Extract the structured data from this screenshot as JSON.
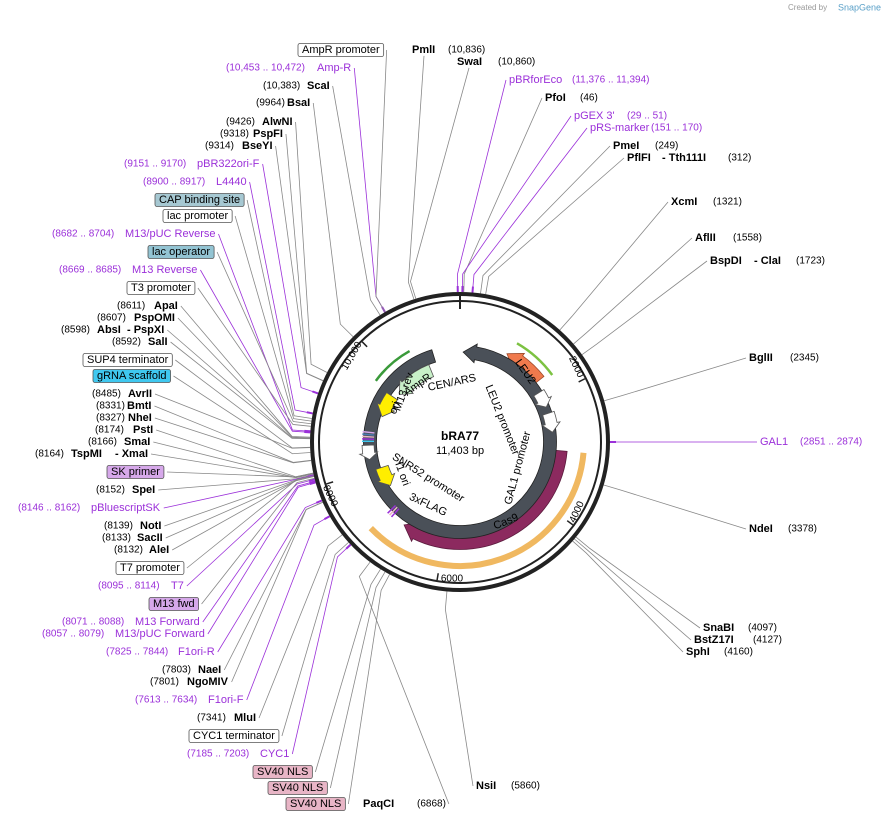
{
  "header": {
    "credit": "Created by",
    "brand": "SnapGene"
  },
  "plasmid": {
    "name": "bRA77",
    "size": "11,403 bp",
    "ring_ticks": [
      "2000",
      "4000",
      "6000",
      "8000",
      "10,000"
    ],
    "features": [
      {
        "name": "AmpR"
      },
      {
        "name": "ori"
      },
      {
        "name": "M13 rev"
      },
      {
        "name": "CEN/ARS"
      },
      {
        "name": "LEU2"
      },
      {
        "name": "LEU2 promoter"
      },
      {
        "name": "GAL1 promoter"
      },
      {
        "name": "Cas9"
      },
      {
        "name": "SNR52 promoter"
      },
      {
        "name": "f1 ori"
      },
      {
        "name": "3xFLAG"
      }
    ]
  },
  "enzymes": [
    {
      "name": "PmlI",
      "position": "(10,836)"
    },
    {
      "name": "SwaI",
      "position": "(10,860)"
    },
    {
      "name": "ScaI",
      "position": "(10,383)"
    },
    {
      "name": "PfoI",
      "position": "(46)"
    },
    {
      "name": "BsaI",
      "position": "(9964)"
    },
    {
      "name": "AlwNI",
      "position": "(9426)"
    },
    {
      "name": "PspFI",
      "position": "(9318)"
    },
    {
      "name": "BseYI",
      "position": "(9314)"
    },
    {
      "name": "PmeI",
      "position": "(249)"
    },
    {
      "name": "PflFI",
      "position": "(312)",
      "also": "- Tth111I"
    },
    {
      "name": "XcmI",
      "position": "(1321)"
    },
    {
      "name": "AflII",
      "position": "(1558)"
    },
    {
      "name": "BspDI",
      "position": "(1723)",
      "also": "- ClaI"
    },
    {
      "name": "ApaI",
      "position": "(8611)"
    },
    {
      "name": "PspOMI",
      "position": "(8607)"
    },
    {
      "name": "AbsI",
      "position": "(8598)",
      "also": "- PspXI"
    },
    {
      "name": "SalI",
      "position": "(8592)"
    },
    {
      "name": "BglII",
      "position": "(2345)"
    },
    {
      "name": "AvrII",
      "position": "(8485)"
    },
    {
      "name": "BmtI",
      "position": "(8331)"
    },
    {
      "name": "NheI",
      "position": "(8327)"
    },
    {
      "name": "PstI",
      "position": "(8174)"
    },
    {
      "name": "SmaI",
      "position": "(8166)"
    },
    {
      "name": "TspMI",
      "position": "(8164)",
      "also": "- XmaI"
    },
    {
      "name": "SpeI",
      "position": "(8152)"
    },
    {
      "name": "NotI",
      "position": "(8139)"
    },
    {
      "name": "NdeI",
      "position": "(3378)"
    },
    {
      "name": "SacII",
      "position": "(8133)"
    },
    {
      "name": "AleI",
      "position": "(8132)"
    },
    {
      "name": "SnaBI",
      "position": "(4097)"
    },
    {
      "name": "BstZ17I",
      "position": "(4127)"
    },
    {
      "name": "SphI",
      "position": "(4160)"
    },
    {
      "name": "NaeI",
      "position": "(7803)"
    },
    {
      "name": "NgoMIV",
      "position": "(7801)"
    },
    {
      "name": "MluI",
      "position": "(7341)"
    },
    {
      "name": "NsiI",
      "position": "(5860)"
    },
    {
      "name": "PaqCI",
      "position": "(6868)"
    }
  ],
  "primers": [
    {
      "name": "Amp-R",
      "range": "(10,453 .. 10,472)"
    },
    {
      "name": "pBRforEco",
      "range": "(11,376 .. 11,394)"
    },
    {
      "name": "pGEX 3'",
      "range": "(29 .. 51)"
    },
    {
      "name": "pRS-marker",
      "range": "(151 .. 170)"
    },
    {
      "name": "pBR322ori-F",
      "range": "(9151 .. 9170)"
    },
    {
      "name": "L4440",
      "range": "(8900 .. 8917)"
    },
    {
      "name": "M13/pUC Reverse",
      "range": "(8682 .. 8704)"
    },
    {
      "name": "M13 Reverse",
      "range": "(8669 .. 8685)"
    },
    {
      "name": "GAL1",
      "range": "(2851 .. 2874)"
    },
    {
      "name": "pBluescriptSK",
      "range": "(8146 .. 8162)"
    },
    {
      "name": "T7",
      "range": "(8095 .. 8114)"
    },
    {
      "name": "M13 Forward",
      "range": "(8071 .. 8088)"
    },
    {
      "name": "M13/pUC Forward",
      "range": "(8057 .. 8079)"
    },
    {
      "name": "F1ori-R",
      "range": "(7825 .. 7844)"
    },
    {
      "name": "F1ori-F",
      "range": "(7613 .. 7634)"
    },
    {
      "name": "CYC1",
      "range": "(7185 .. 7203)"
    }
  ],
  "feature_labels": [
    {
      "name": "AmpR promoter",
      "color": "#ffffff"
    },
    {
      "name": "CAP binding site",
      "color": "#a6c8d2"
    },
    {
      "name": "lac promoter",
      "color": "#ffffff"
    },
    {
      "name": "lac operator",
      "color": "#93c4d3"
    },
    {
      "name": "T3 promoter",
      "color": "#ffffff"
    },
    {
      "name": "SUP4 terminator",
      "color": "#ffffff"
    },
    {
      "name": "gRNA scaffold",
      "color": "#3fc8f0"
    },
    {
      "name": "SK primer",
      "color": "#d6a8ea"
    },
    {
      "name": "T7 promoter",
      "color": "#ffffff"
    },
    {
      "name": "M13 fwd",
      "color": "#d6a8ea"
    },
    {
      "name": "CYC1 terminator",
      "color": "#ffffff"
    },
    {
      "name": "SV40 NLS",
      "color": "#e8b5c6"
    },
    {
      "name": "SV40 NLS",
      "color": "#e8b5c6"
    },
    {
      "name": "SV40 NLS",
      "color": "#e8b5c6"
    }
  ]
}
